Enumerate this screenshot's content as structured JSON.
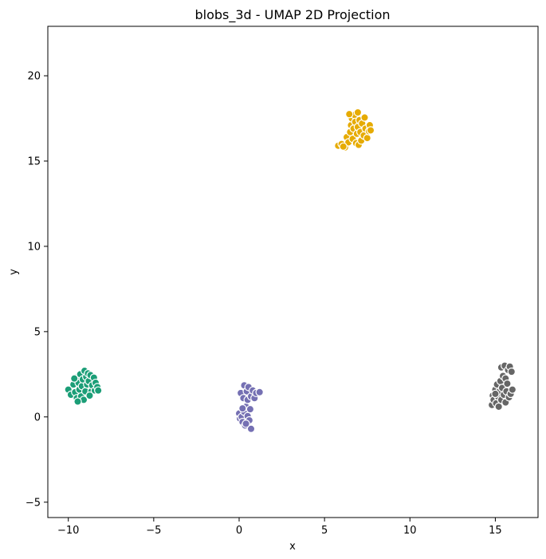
{
  "chart_data": {
    "type": "scatter",
    "title": "blobs_3d - UMAP 2D Projection",
    "xlabel": "x",
    "ylabel": "y",
    "xlim": [
      -11.2,
      17.5
    ],
    "ylim": [
      -5.9,
      22.9
    ],
    "xticks": [
      -10,
      -5,
      0,
      5,
      10,
      15
    ],
    "xtick_labels": [
      "−10",
      "−5",
      "0",
      "5",
      "10",
      "15"
    ],
    "yticks": [
      -5,
      0,
      5,
      10,
      15,
      20
    ],
    "ytick_labels": [
      "−5",
      "0",
      "5",
      "10",
      "15",
      "20"
    ],
    "grid": false,
    "legend": "none",
    "marker_edge_color": "#ffffff",
    "series": [
      {
        "color": "#1b9e77",
        "points": [
          [
            -10.0,
            1.6
          ],
          [
            -9.85,
            1.3
          ],
          [
            -9.7,
            1.9
          ],
          [
            -9.6,
            1.45
          ],
          [
            -9.55,
            2.3
          ],
          [
            -9.5,
            1.1
          ],
          [
            -9.4,
            2.0
          ],
          [
            -9.35,
            1.6
          ],
          [
            -9.3,
            2.5
          ],
          [
            -9.25,
            1.2
          ],
          [
            -9.2,
            1.8
          ],
          [
            -9.15,
            2.2
          ],
          [
            -9.1,
            1.0
          ],
          [
            -9.05,
            2.7
          ],
          [
            -9.0,
            1.5
          ],
          [
            -8.95,
            2.35
          ],
          [
            -8.9,
            1.9
          ],
          [
            -8.85,
            2.55
          ],
          [
            -8.8,
            2.1
          ],
          [
            -8.7,
            2.45
          ],
          [
            -8.65,
            1.5
          ],
          [
            -8.6,
            1.85
          ],
          [
            -8.5,
            2.3
          ],
          [
            -8.45,
            1.55
          ],
          [
            -8.4,
            2.0
          ],
          [
            -8.3,
            1.75
          ],
          [
            -8.25,
            1.55
          ],
          [
            -9.65,
            2.25
          ],
          [
            -9.45,
            0.9
          ],
          [
            -8.75,
            1.25
          ]
        ]
      },
      {
        "color": "#7570b3",
        "points": [
          [
            0.0,
            0.2
          ],
          [
            0.05,
            -0.1
          ],
          [
            0.1,
            1.4
          ],
          [
            0.15,
            0.0
          ],
          [
            0.2,
            -0.3
          ],
          [
            0.25,
            1.1
          ],
          [
            0.3,
            1.85
          ],
          [
            0.3,
            0.3
          ],
          [
            0.35,
            -0.5
          ],
          [
            0.4,
            0.6
          ],
          [
            0.45,
            1.5
          ],
          [
            0.5,
            0.05
          ],
          [
            0.5,
            1.0
          ],
          [
            0.55,
            1.75
          ],
          [
            0.6,
            -0.2
          ],
          [
            0.65,
            0.45
          ],
          [
            0.7,
            1.2
          ],
          [
            0.7,
            -0.7
          ],
          [
            0.8,
            1.55
          ],
          [
            0.9,
            1.1
          ],
          [
            1.0,
            1.4
          ],
          [
            1.2,
            1.45
          ],
          [
            0.4,
            -0.4
          ],
          [
            0.2,
            0.5
          ]
        ]
      },
      {
        "color": "#e6ab02",
        "points": [
          [
            5.8,
            15.9
          ],
          [
            6.0,
            16.0
          ],
          [
            6.2,
            15.8
          ],
          [
            6.3,
            16.4
          ],
          [
            6.4,
            16.1
          ],
          [
            6.5,
            16.7
          ],
          [
            6.55,
            17.1
          ],
          [
            6.6,
            17.5
          ],
          [
            6.65,
            16.3
          ],
          [
            6.7,
            16.9
          ],
          [
            6.75,
            17.7
          ],
          [
            6.8,
            17.3
          ],
          [
            6.85,
            16.05
          ],
          [
            6.9,
            16.6
          ],
          [
            6.95,
            17.0
          ],
          [
            7.0,
            15.95
          ],
          [
            7.05,
            17.4
          ],
          [
            7.1,
            16.7
          ],
          [
            7.15,
            16.2
          ],
          [
            7.2,
            17.2
          ],
          [
            7.3,
            16.5
          ],
          [
            7.35,
            17.55
          ],
          [
            7.4,
            16.9
          ],
          [
            7.5,
            16.35
          ],
          [
            7.6,
            16.75
          ],
          [
            7.65,
            17.1
          ],
          [
            7.7,
            16.8
          ],
          [
            6.45,
            17.75
          ],
          [
            6.95,
            17.85
          ],
          [
            6.1,
            15.85
          ]
        ]
      },
      {
        "color": "#666666",
        "points": [
          [
            14.8,
            0.7
          ],
          [
            14.85,
            1.25
          ],
          [
            14.9,
            1.0
          ],
          [
            15.0,
            1.6
          ],
          [
            15.05,
            0.8
          ],
          [
            15.1,
            1.9
          ],
          [
            15.15,
            1.2
          ],
          [
            15.2,
            0.6
          ],
          [
            15.25,
            1.5
          ],
          [
            15.3,
            2.1
          ],
          [
            15.35,
            1.0
          ],
          [
            15.35,
            2.9
          ],
          [
            15.4,
            1.7
          ],
          [
            15.45,
            2.4
          ],
          [
            15.5,
            1.3
          ],
          [
            15.55,
            3.0
          ],
          [
            15.6,
            0.85
          ],
          [
            15.6,
            2.25
          ],
          [
            15.65,
            1.5
          ],
          [
            15.7,
            1.95
          ],
          [
            15.75,
            2.75
          ],
          [
            15.8,
            1.15
          ],
          [
            15.85,
            2.95
          ],
          [
            15.9,
            1.35
          ],
          [
            16.0,
            1.6
          ],
          [
            15.95,
            2.65
          ],
          [
            15.0,
            1.35
          ]
        ]
      }
    ]
  }
}
